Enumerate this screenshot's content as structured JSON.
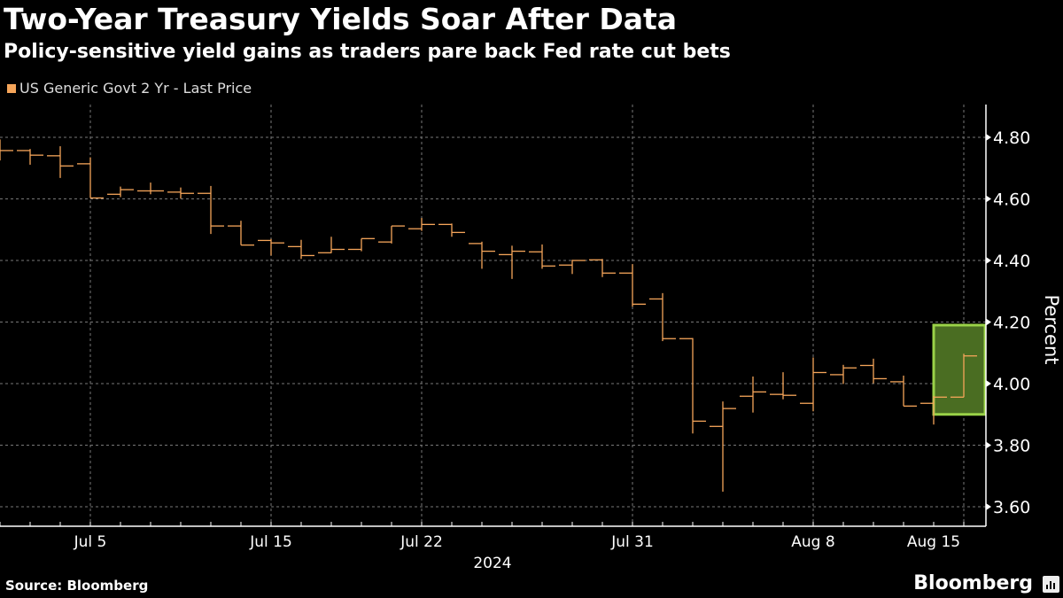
{
  "chart_data": {
    "type": "ohlc",
    "title": "Two-Year Treasury Yields Soar After Data",
    "subtitle": "Policy-sensitive yield gains as traders pare back Fed rate cut bets",
    "legend": [
      {
        "name": "US Generic Govt 2 Yr - Last Price",
        "color": "#f5a55a"
      }
    ],
    "ylabel": "Percent",
    "xlabel": "2024",
    "ylim": [
      3.56,
      4.9
    ],
    "yticks": [
      "4.80",
      "4.60",
      "4.40",
      "4.20",
      "4.00",
      "3.80",
      "3.60"
    ],
    "xticks": [
      {
        "date": "2024-07-05",
        "label": "Jul 5"
      },
      {
        "date": "2024-07-15",
        "label": "Jul 15"
      },
      {
        "date": "2024-07-22",
        "label": "Jul 22"
      },
      {
        "date": "2024-07-31",
        "label": "Jul 31"
      },
      {
        "date": "2024-08-08",
        "label": "Aug 8"
      },
      {
        "date": "2024-08-15",
        "label": "Aug 15"
      }
    ],
    "grid": true,
    "legend_position": "top-left",
    "highlight": {
      "date_from": "2024-08-14",
      "date_to": "2024-08-15",
      "y_range": [
        3.9,
        4.19
      ],
      "color": "#4a6d22",
      "border": "#9ad248"
    },
    "series": [
      {
        "name": "US Generic Govt 2 Yr - Last Price",
        "bars": [
          {
            "date": "2024-07-01",
            "o": 4.76,
            "h": 4.793,
            "l": 4.725,
            "c": 4.757
          },
          {
            "date": "2024-07-02",
            "o": 4.757,
            "h": 4.762,
            "l": 4.711,
            "c": 4.742
          },
          {
            "date": "2024-07-03",
            "o": 4.74,
            "h": 4.771,
            "l": 4.668,
            "c": 4.707
          },
          {
            "date": "2024-07-05",
            "o": 4.714,
            "h": 4.735,
            "l": 4.603,
            "c": 4.603
          },
          {
            "date": "2024-07-08",
            "o": 4.615,
            "h": 4.64,
            "l": 4.606,
            "c": 4.63
          },
          {
            "date": "2024-07-09",
            "o": 4.626,
            "h": 4.653,
            "l": 4.615,
            "c": 4.626
          },
          {
            "date": "2024-07-10",
            "o": 4.622,
            "h": 4.637,
            "l": 4.601,
            "c": 4.618
          },
          {
            "date": "2024-07-11",
            "o": 4.618,
            "h": 4.642,
            "l": 4.486,
            "c": 4.512
          },
          {
            "date": "2024-07-12",
            "o": 4.512,
            "h": 4.529,
            "l": 4.45,
            "c": 4.45
          },
          {
            "date": "2024-07-15",
            "o": 4.465,
            "h": 4.47,
            "l": 4.416,
            "c": 4.457
          },
          {
            "date": "2024-07-16",
            "o": 4.445,
            "h": 4.467,
            "l": 4.405,
            "c": 4.416
          },
          {
            "date": "2024-07-17",
            "o": 4.425,
            "h": 4.477,
            "l": 4.424,
            "c": 4.436
          },
          {
            "date": "2024-07-18",
            "o": 4.436,
            "h": 4.471,
            "l": 4.43,
            "c": 4.471
          },
          {
            "date": "2024-07-19",
            "o": 4.46,
            "h": 4.512,
            "l": 4.455,
            "c": 4.512
          },
          {
            "date": "2024-07-22",
            "o": 4.503,
            "h": 4.538,
            "l": 4.496,
            "c": 4.517
          },
          {
            "date": "2024-07-23",
            "o": 4.517,
            "h": 4.52,
            "l": 4.477,
            "c": 4.491
          },
          {
            "date": "2024-07-24",
            "o": 4.455,
            "h": 4.461,
            "l": 4.373,
            "c": 4.43
          },
          {
            "date": "2024-07-25",
            "o": 4.419,
            "h": 4.448,
            "l": 4.34,
            "c": 4.43
          },
          {
            "date": "2024-07-26",
            "o": 4.428,
            "h": 4.452,
            "l": 4.373,
            "c": 4.382
          },
          {
            "date": "2024-07-29",
            "o": 4.385,
            "h": 4.402,
            "l": 4.356,
            "c": 4.4
          },
          {
            "date": "2024-07-30",
            "o": 4.402,
            "h": 4.405,
            "l": 4.346,
            "c": 4.359
          },
          {
            "date": "2024-07-31",
            "o": 4.359,
            "h": 4.388,
            "l": 4.25,
            "c": 4.258
          },
          {
            "date": "2024-08-01",
            "o": 4.275,
            "h": 4.294,
            "l": 4.138,
            "c": 4.146
          },
          {
            "date": "2024-08-02",
            "o": 4.146,
            "h": 4.148,
            "l": 3.838,
            "c": 3.878
          },
          {
            "date": "2024-08-05",
            "o": 3.861,
            "h": 3.942,
            "l": 3.649,
            "c": 3.919
          },
          {
            "date": "2024-08-06",
            "o": 3.959,
            "h": 4.023,
            "l": 3.906,
            "c": 3.973
          },
          {
            "date": "2024-08-07",
            "o": 3.965,
            "h": 4.037,
            "l": 3.949,
            "c": 3.962
          },
          {
            "date": "2024-08-08",
            "o": 3.936,
            "h": 4.085,
            "l": 3.91,
            "c": 4.036
          },
          {
            "date": "2024-08-09",
            "o": 4.029,
            "h": 4.061,
            "l": 3.999,
            "c": 4.051
          },
          {
            "date": "2024-08-12",
            "o": 4.059,
            "h": 4.081,
            "l": 4.001,
            "c": 4.016
          },
          {
            "date": "2024-08-13",
            "o": 4.006,
            "h": 4.026,
            "l": 3.927,
            "c": 3.927
          },
          {
            "date": "2024-08-14",
            "o": 3.936,
            "h": 3.96,
            "l": 3.867,
            "c": 3.956
          },
          {
            "date": "2024-08-15",
            "o": 3.956,
            "h": 4.097,
            "l": 3.956,
            "c": 4.09
          }
        ]
      }
    ]
  },
  "footer": {
    "source": "Source: Bloomberg",
    "brand": "Bloomberg"
  },
  "colors": {
    "series": "#f5a55a",
    "grid": "#777777",
    "axis": "#ffffff"
  }
}
